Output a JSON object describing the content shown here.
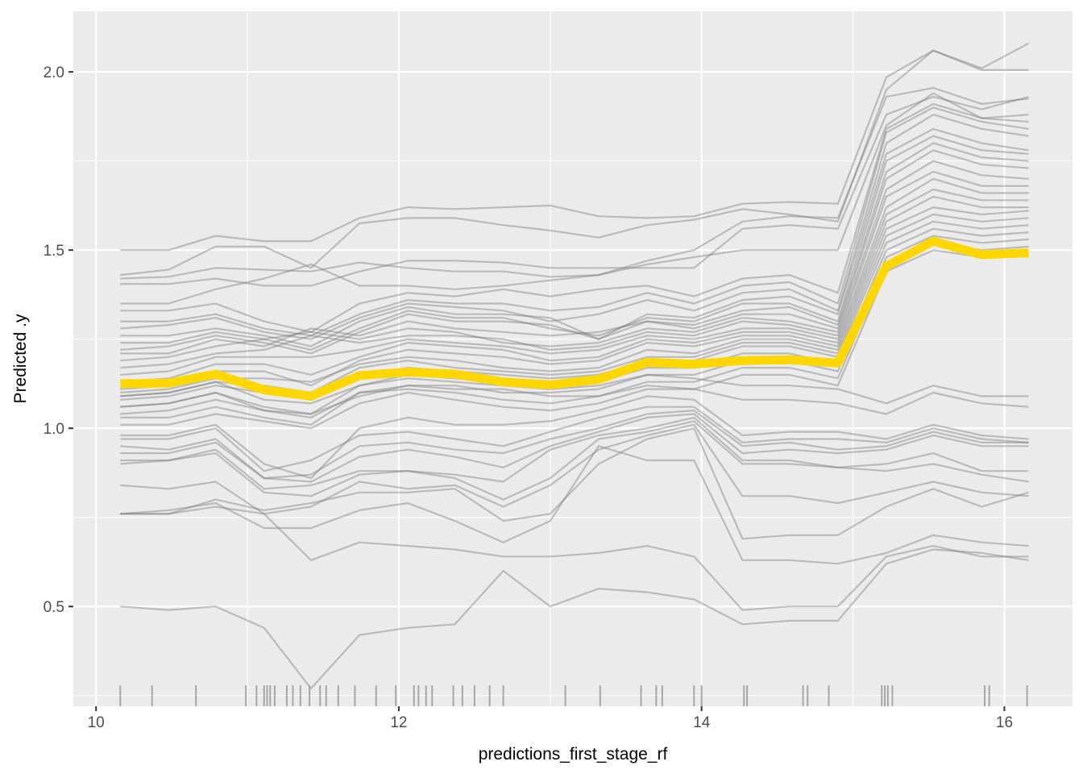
{
  "chart_data": {
    "type": "line",
    "title": "",
    "xlabel": "predictions_first_stage_rf",
    "ylabel": "Predicted .y",
    "xlim": [
      9.85,
      16.45
    ],
    "ylim": [
      0.22,
      2.17
    ],
    "x_ticks": [
      10,
      12,
      14,
      16
    ],
    "x_tick_labels": [
      "10",
      "12",
      "14",
      "16"
    ],
    "y_ticks": [
      0.5,
      1.0,
      1.5,
      2.0
    ],
    "y_tick_labels": [
      "0.5",
      "1.0",
      "1.5",
      "2.0"
    ],
    "grid": true,
    "legend": "none",
    "colors": {
      "panel_background": "#ebebeb",
      "grid": "#ffffff",
      "ice_lines": "#7f7f7f",
      "pdp_line": "#ffd700",
      "rug": "#a6a6a6",
      "tick_text": "#4d4d4d"
    },
    "x": [
      10.16,
      10.48,
      10.79,
      11.11,
      11.42,
      11.74,
      12.06,
      12.37,
      12.69,
      13.0,
      13.32,
      13.64,
      13.95,
      14.27,
      14.58,
      14.9,
      15.22,
      15.53,
      15.85,
      16.16
    ],
    "pdp": {
      "values": [
        1.125,
        1.127,
        1.152,
        1.108,
        1.09,
        1.148,
        1.158,
        1.152,
        1.13,
        1.122,
        1.137,
        1.185,
        1.18,
        1.19,
        1.192,
        1.183,
        1.455,
        1.525,
        1.487,
        1.492
      ]
    },
    "ice": [
      [
        1.5,
        1.5,
        1.54,
        1.525,
        1.525,
        1.59,
        1.62,
        1.615,
        1.62,
        1.625,
        1.595,
        1.59,
        1.595,
        1.63,
        1.635,
        1.63,
        1.985,
        2.06,
        2.01,
        2.08
      ],
      [
        1.43,
        1.445,
        1.51,
        1.51,
        1.45,
        1.575,
        1.59,
        1.59,
        1.57,
        1.555,
        1.535,
        1.57,
        1.585,
        1.615,
        1.6,
        1.58,
        1.95,
        2.06,
        2.005,
        2.005
      ],
      [
        1.42,
        1.425,
        1.45,
        1.445,
        1.44,
        1.465,
        1.45,
        1.44,
        1.44,
        1.425,
        1.43,
        1.47,
        1.5,
        1.58,
        1.595,
        1.59,
        1.93,
        1.955,
        1.91,
        1.925
      ],
      [
        1.405,
        1.405,
        1.42,
        1.4,
        1.4,
        1.44,
        1.47,
        1.47,
        1.465,
        1.45,
        1.45,
        1.45,
        1.45,
        1.56,
        1.57,
        1.56,
        1.88,
        1.93,
        1.895,
        1.93
      ],
      [
        1.35,
        1.35,
        1.39,
        1.42,
        1.46,
        1.4,
        1.4,
        1.39,
        1.4,
        1.415,
        1.43,
        1.46,
        1.48,
        1.5,
        1.5,
        1.5,
        1.85,
        1.94,
        1.87,
        1.88
      ],
      [
        1.33,
        1.33,
        1.35,
        1.3,
        1.27,
        1.35,
        1.38,
        1.37,
        1.39,
        1.37,
        1.39,
        1.4,
        1.37,
        1.42,
        1.43,
        1.38,
        1.84,
        1.91,
        1.87,
        1.86
      ],
      [
        1.3,
        1.3,
        1.32,
        1.28,
        1.26,
        1.32,
        1.36,
        1.35,
        1.35,
        1.33,
        1.34,
        1.38,
        1.35,
        1.4,
        1.41,
        1.35,
        1.83,
        1.9,
        1.86,
        1.84
      ],
      [
        1.28,
        1.29,
        1.31,
        1.27,
        1.25,
        1.31,
        1.35,
        1.34,
        1.33,
        1.3,
        1.32,
        1.36,
        1.33,
        1.38,
        1.39,
        1.33,
        1.8,
        1.88,
        1.84,
        1.82
      ],
      [
        1.26,
        1.26,
        1.28,
        1.26,
        1.23,
        1.3,
        1.34,
        1.32,
        1.32,
        1.31,
        1.25,
        1.32,
        1.31,
        1.36,
        1.37,
        1.32,
        1.77,
        1.84,
        1.8,
        1.78
      ],
      [
        1.24,
        1.24,
        1.27,
        1.25,
        1.22,
        1.28,
        1.33,
        1.31,
        1.31,
        1.28,
        1.26,
        1.31,
        1.3,
        1.35,
        1.35,
        1.3,
        1.75,
        1.82,
        1.78,
        1.77
      ],
      [
        1.22,
        1.23,
        1.26,
        1.24,
        1.21,
        1.27,
        1.32,
        1.3,
        1.3,
        1.29,
        1.25,
        1.3,
        1.29,
        1.33,
        1.34,
        1.29,
        1.72,
        1.8,
        1.76,
        1.75
      ],
      [
        1.21,
        1.21,
        1.25,
        1.23,
        1.28,
        1.26,
        1.3,
        1.28,
        1.27,
        1.26,
        1.27,
        1.3,
        1.28,
        1.32,
        1.32,
        1.28,
        1.7,
        1.78,
        1.74,
        1.73
      ],
      [
        1.19,
        1.2,
        1.23,
        1.25,
        1.27,
        1.25,
        1.28,
        1.27,
        1.24,
        1.23,
        1.24,
        1.28,
        1.27,
        1.31,
        1.3,
        1.27,
        1.67,
        1.75,
        1.71,
        1.7
      ],
      [
        1.17,
        1.18,
        1.21,
        1.22,
        1.26,
        1.24,
        1.26,
        1.26,
        1.25,
        1.22,
        1.23,
        1.27,
        1.26,
        1.3,
        1.29,
        1.26,
        1.65,
        1.72,
        1.68,
        1.68
      ],
      [
        1.15,
        1.16,
        1.2,
        1.2,
        1.2,
        1.22,
        1.25,
        1.24,
        1.23,
        1.21,
        1.22,
        1.26,
        1.25,
        1.28,
        1.28,
        1.25,
        1.62,
        1.7,
        1.66,
        1.66
      ],
      [
        1.13,
        1.14,
        1.18,
        1.18,
        1.15,
        1.2,
        1.24,
        1.23,
        1.22,
        1.19,
        1.2,
        1.25,
        1.24,
        1.27,
        1.27,
        1.24,
        1.6,
        1.67,
        1.64,
        1.64
      ],
      [
        1.11,
        1.12,
        1.16,
        1.16,
        1.12,
        1.19,
        1.22,
        1.21,
        1.2,
        1.18,
        1.19,
        1.24,
        1.23,
        1.26,
        1.26,
        1.23,
        1.58,
        1.65,
        1.62,
        1.62
      ],
      [
        1.1,
        1.11,
        1.14,
        1.14,
        1.13,
        1.18,
        1.2,
        1.19,
        1.17,
        1.16,
        1.17,
        1.22,
        1.21,
        1.25,
        1.25,
        1.22,
        1.56,
        1.62,
        1.6,
        1.61
      ],
      [
        1.09,
        1.1,
        1.13,
        1.12,
        1.1,
        1.17,
        1.19,
        1.17,
        1.16,
        1.15,
        1.16,
        1.2,
        1.2,
        1.24,
        1.24,
        1.21,
        1.54,
        1.6,
        1.58,
        1.59
      ],
      [
        1.08,
        1.09,
        1.12,
        1.1,
        1.08,
        1.15,
        1.17,
        1.16,
        1.15,
        1.14,
        1.15,
        1.19,
        1.19,
        1.23,
        1.23,
        1.2,
        1.52,
        1.58,
        1.56,
        1.57
      ],
      [
        1.06,
        1.07,
        1.1,
        1.06,
        1.04,
        1.12,
        1.15,
        1.14,
        1.13,
        1.12,
        1.13,
        1.17,
        1.17,
        1.21,
        1.21,
        1.18,
        1.5,
        1.56,
        1.54,
        1.55
      ],
      [
        1.04,
        1.05,
        1.08,
        1.05,
        1.04,
        1.09,
        1.12,
        1.12,
        1.1,
        1.1,
        1.11,
        1.15,
        1.15,
        1.19,
        1.19,
        1.16,
        1.48,
        1.54,
        1.52,
        1.53
      ],
      [
        1.03,
        1.03,
        1.06,
        1.03,
        1.01,
        1.1,
        1.11,
        1.1,
        1.08,
        1.07,
        1.09,
        1.13,
        1.13,
        1.17,
        1.17,
        1.14,
        1.46,
        1.52,
        1.5,
        1.51
      ],
      [
        1.01,
        1.01,
        1.04,
        1.02,
        1.0,
        1.07,
        1.1,
        1.08,
        1.06,
        1.05,
        1.07,
        1.11,
        1.11,
        1.15,
        1.15,
        1.12,
        1.44,
        1.5,
        1.48,
        1.49
      ],
      [
        1.09,
        1.1,
        1.13,
        1.08,
        1.07,
        1.12,
        1.14,
        1.13,
        1.12,
        1.11,
        1.12,
        1.15,
        1.14,
        1.12,
        1.12,
        1.11,
        1.07,
        1.12,
        1.09,
        1.09
      ],
      [
        1.06,
        1.07,
        1.1,
        1.05,
        1.03,
        1.1,
        1.12,
        1.11,
        1.11,
        1.09,
        1.09,
        1.12,
        1.11,
        1.08,
        1.08,
        1.07,
        1.04,
        1.1,
        1.07,
        1.06
      ],
      [
        0.98,
        0.98,
        1.01,
        0.9,
        0.86,
        1.0,
        1.03,
        1.01,
        1.01,
        1.02,
        1.05,
        1.09,
        1.08,
        0.98,
        0.99,
        0.99,
        0.97,
        1.01,
        0.98,
        0.97
      ],
      [
        0.97,
        0.97,
        1.0,
        0.88,
        0.91,
        0.98,
        0.99,
        0.97,
        0.95,
        0.99,
        1.03,
        1.06,
        1.06,
        0.96,
        0.97,
        0.97,
        0.96,
        1.0,
        0.97,
        0.96
      ],
      [
        0.95,
        0.94,
        0.97,
        0.86,
        0.87,
        0.95,
        0.96,
        0.94,
        0.93,
        0.97,
        1.0,
        1.04,
        1.05,
        0.95,
        0.96,
        0.94,
        0.95,
        0.99,
        0.96,
        0.96
      ],
      [
        0.93,
        0.93,
        0.96,
        0.86,
        0.85,
        0.92,
        0.94,
        0.92,
        0.89,
        0.95,
        0.99,
        1.03,
        1.04,
        0.93,
        0.94,
        0.93,
        0.94,
        0.98,
        0.95,
        0.95
      ],
      [
        0.91,
        0.91,
        0.94,
        0.83,
        0.84,
        0.88,
        0.88,
        0.87,
        0.85,
        0.94,
        0.98,
        1.0,
        1.03,
        0.91,
        0.91,
        0.89,
        0.9,
        0.93,
        0.88,
        0.88
      ],
      [
        0.9,
        0.91,
        0.93,
        0.82,
        0.81,
        0.87,
        0.88,
        0.86,
        0.8,
        0.86,
        0.97,
        0.99,
        1.02,
        0.9,
        0.9,
        0.89,
        0.88,
        0.9,
        0.87,
        0.85
      ],
      [
        0.84,
        0.83,
        0.85,
        0.76,
        0.78,
        0.85,
        0.83,
        0.84,
        0.78,
        0.84,
        0.94,
        0.98,
        1.01,
        0.81,
        0.81,
        0.79,
        0.82,
        0.85,
        0.82,
        0.81
      ],
      [
        0.76,
        0.76,
        0.8,
        0.77,
        0.79,
        0.82,
        0.82,
        0.83,
        0.74,
        0.76,
        0.9,
        0.97,
        1.0,
        0.69,
        0.7,
        0.7,
        0.78,
        0.83,
        0.78,
        0.82
      ],
      [
        0.76,
        0.77,
        0.79,
        0.72,
        0.72,
        0.77,
        0.79,
        0.74,
        0.68,
        0.74,
        0.95,
        0.91,
        0.91,
        0.63,
        0.63,
        0.62,
        0.65,
        0.7,
        0.68,
        0.67
      ],
      [
        0.76,
        0.76,
        0.78,
        0.76,
        0.63,
        0.68,
        0.67,
        0.66,
        0.64,
        0.64,
        0.65,
        0.67,
        0.64,
        0.49,
        0.5,
        0.5,
        0.64,
        0.67,
        0.64,
        0.64
      ],
      [
        0.5,
        0.49,
        0.5,
        0.44,
        0.27,
        0.42,
        0.44,
        0.45,
        0.6,
        0.5,
        0.55,
        0.54,
        0.52,
        0.45,
        0.46,
        0.46,
        0.62,
        0.66,
        0.65,
        0.63
      ]
    ],
    "rug_x": [
      10.16,
      10.37,
      10.66,
      10.99,
      11.06,
      11.11,
      11.13,
      11.15,
      11.18,
      11.26,
      11.3,
      11.35,
      11.41,
      11.48,
      11.52,
      11.6,
      11.71,
      11.85,
      11.98,
      12.1,
      12.13,
      12.18,
      12.22,
      12.36,
      12.42,
      12.5,
      12.6,
      12.69,
      13.1,
      13.33,
      13.6,
      13.7,
      13.74,
      13.95,
      14.0,
      14.28,
      14.3,
      14.67,
      14.7,
      14.84,
      15.19,
      15.21,
      15.23,
      15.26,
      15.87,
      15.9,
      16.15
    ]
  }
}
